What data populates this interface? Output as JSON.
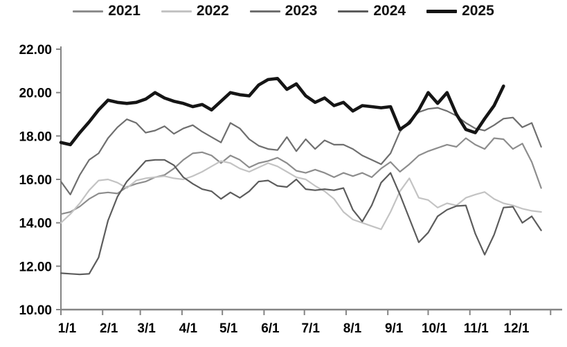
{
  "chart_data": {
    "type": "line",
    "title": "",
    "xlabel": "",
    "ylabel": "",
    "grid": false,
    "legend_position": "top",
    "x_axis": {
      "tick_labels": [
        "1/1",
        "2/1",
        "3/1",
        "4/1",
        "5/1",
        "6/1",
        "7/1",
        "8/1",
        "9/1",
        "10/1",
        "11/1",
        "12/1"
      ],
      "unit": "month/day",
      "range_days": [
        0,
        364
      ]
    },
    "y_axis": {
      "min": 10,
      "max": 22,
      "step": 2,
      "tick_labels": [
        "10.00",
        "12.00",
        "14.00",
        "16.00",
        "18.00",
        "20.00",
        "22.00"
      ]
    },
    "series": [
      {
        "name": "2021",
        "color": "#8d8d8d",
        "line_width": 2.2,
        "day_step": 7,
        "values": [
          14.4,
          14.5,
          14.75,
          15.1,
          15.35,
          15.4,
          15.35,
          15.65,
          15.8,
          15.9,
          16.1,
          16.2,
          16.5,
          16.9,
          17.2,
          17.25,
          17.1,
          16.75,
          17.1,
          16.9,
          16.55,
          16.75,
          16.85,
          17.0,
          16.75,
          16.4,
          16.3,
          16.45,
          16.3,
          16.1,
          16.3,
          16.15,
          16.3,
          16.1,
          16.5,
          16.8,
          16.35,
          16.7,
          17.1,
          17.3,
          17.45,
          17.6,
          17.5,
          17.9,
          17.6,
          17.4,
          17.9,
          17.85,
          17.4,
          17.65,
          16.8,
          15.6
        ]
      },
      {
        "name": "2022",
        "color": "#c3c3c3",
        "line_width": 2.2,
        "day_step": 7,
        "values": [
          14.0,
          14.4,
          14.9,
          15.5,
          15.95,
          16.0,
          15.85,
          15.6,
          15.95,
          16.05,
          16.1,
          16.15,
          16.05,
          16.0,
          16.15,
          16.35,
          16.6,
          16.85,
          16.75,
          16.5,
          16.35,
          16.55,
          16.75,
          16.6,
          16.35,
          16.1,
          16.0,
          15.7,
          15.45,
          15.1,
          14.5,
          14.15,
          14.0,
          13.85,
          13.7,
          14.5,
          15.45,
          16.05,
          15.15,
          15.05,
          14.7,
          14.9,
          14.8,
          15.15,
          15.3,
          15.42,
          15.1,
          14.9,
          14.8,
          14.65,
          14.55,
          14.5
        ]
      },
      {
        "name": "2023",
        "color": "#6f6f6f",
        "line_width": 2.2,
        "day_step": 7,
        "values": [
          15.9,
          15.3,
          16.2,
          16.9,
          17.2,
          17.9,
          18.4,
          18.77,
          18.6,
          18.15,
          18.25,
          18.45,
          18.1,
          18.35,
          18.5,
          18.2,
          17.95,
          17.7,
          18.6,
          18.35,
          17.85,
          17.55,
          17.4,
          17.35,
          17.95,
          17.3,
          17.85,
          17.4,
          17.8,
          17.6,
          17.6,
          17.4,
          17.1,
          16.9,
          16.7,
          17.2,
          18.2,
          18.7,
          19.1,
          19.25,
          19.3,
          19.15,
          18.93,
          18.6,
          18.35,
          18.25,
          18.5,
          18.8,
          18.85,
          18.4,
          18.6,
          17.5
        ]
      },
      {
        "name": "2024",
        "color": "#5c5c5c",
        "line_width": 2.2,
        "day_step": 7,
        "values": [
          11.68,
          11.65,
          11.62,
          11.65,
          12.4,
          14.1,
          15.2,
          15.9,
          16.37,
          16.85,
          16.9,
          16.9,
          16.65,
          16.1,
          15.8,
          15.55,
          15.45,
          15.1,
          15.4,
          15.15,
          15.45,
          15.9,
          15.95,
          15.7,
          15.65,
          16.0,
          15.55,
          15.5,
          15.55,
          15.5,
          15.6,
          14.6,
          14.06,
          14.8,
          15.85,
          16.3,
          15.3,
          14.2,
          13.1,
          13.55,
          14.3,
          14.6,
          14.77,
          14.8,
          13.5,
          12.53,
          13.45,
          14.7,
          14.74,
          14.0,
          14.3,
          13.65
        ]
      },
      {
        "name": "2025",
        "color": "#151515",
        "line_width": 4.6,
        "day_step": 7,
        "values": [
          17.7,
          17.6,
          18.15,
          18.65,
          19.2,
          19.65,
          19.55,
          19.5,
          19.55,
          19.7,
          20.0,
          19.75,
          19.6,
          19.5,
          19.35,
          19.45,
          19.2,
          19.6,
          20.0,
          19.9,
          19.85,
          20.35,
          20.6,
          20.65,
          20.15,
          20.4,
          19.85,
          19.55,
          19.75,
          19.4,
          19.55,
          19.15,
          19.4,
          19.35,
          19.3,
          19.35,
          18.3,
          18.6,
          19.2,
          20.0,
          19.5,
          20.0,
          19.0,
          18.3,
          18.15,
          18.8,
          19.4,
          20.3
        ]
      }
    ],
    "axis_color": "#848484"
  }
}
